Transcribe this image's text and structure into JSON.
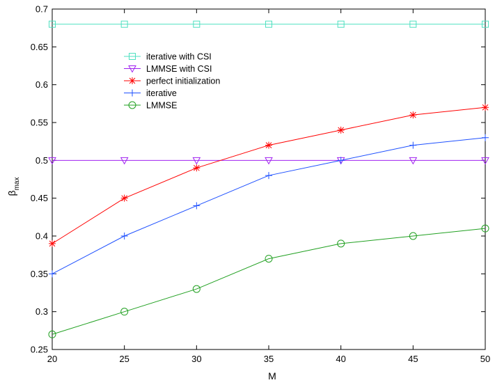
{
  "chart_data": {
    "type": "line",
    "xlabel": "M",
    "ylabel": "β",
    "ylabel_subscript": "max",
    "xlim": [
      20,
      50
    ],
    "ylim": [
      0.25,
      0.7
    ],
    "xticks": [
      20,
      25,
      30,
      35,
      40,
      45,
      50
    ],
    "yticks": [
      0.25,
      0.3,
      0.35,
      0.4,
      0.45,
      0.5,
      0.55,
      0.6,
      0.65,
      0.7
    ],
    "xtick_labels": [
      "20",
      "25",
      "30",
      "35",
      "40",
      "45",
      "50"
    ],
    "ytick_labels": [
      "0.25",
      "0.3",
      "0.35",
      "0.4",
      "0.45",
      "0.5",
      "0.55",
      "0.6",
      "0.65",
      "0.7"
    ],
    "grid": false,
    "legend_position": "upper-left",
    "x": [
      20,
      25,
      30,
      35,
      40,
      45,
      50
    ],
    "series": [
      {
        "name": "iterative with CSI",
        "marker": "square",
        "color": "#4fe0c0",
        "values": [
          0.68,
          0.68,
          0.68,
          0.68,
          0.68,
          0.68,
          0.68
        ]
      },
      {
        "name": "LMMSE with CSI",
        "marker": "triangle-down",
        "color": "#a020f0",
        "values": [
          0.5,
          0.5,
          0.5,
          0.5,
          0.5,
          0.5,
          0.5
        ]
      },
      {
        "name": "perfect initialization",
        "marker": "asterisk",
        "color": "#ff0000",
        "values": [
          0.39,
          0.45,
          0.49,
          0.52,
          0.54,
          0.56,
          0.57
        ]
      },
      {
        "name": "iterative",
        "marker": "plus",
        "color": "#1e50ff",
        "values": [
          0.35,
          0.4,
          0.44,
          0.48,
          0.5,
          0.52,
          0.53
        ]
      },
      {
        "name": "LMMSE",
        "marker": "circle",
        "color": "#20a020",
        "values": [
          0.27,
          0.3,
          0.33,
          0.37,
          0.39,
          0.4,
          0.41
        ]
      }
    ]
  }
}
